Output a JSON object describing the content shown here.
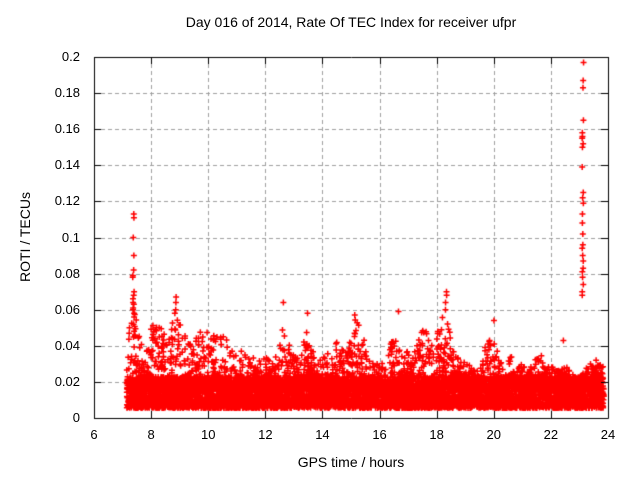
{
  "chart_data": {
    "type": "scatter",
    "title": "Day 016 of 2014, Rate Of TEC Index for receiver ufpr",
    "xlabel": "GPS time / hours",
    "ylabel": "ROTI / TECUs",
    "xlim": [
      6,
      24
    ],
    "ylim": [
      0,
      0.2
    ],
    "xticks": [
      {
        "v": 6,
        "label": "6"
      },
      {
        "v": 8,
        "label": "8"
      },
      {
        "v": 10,
        "label": "10"
      },
      {
        "v": 12,
        "label": "12"
      },
      {
        "v": 14,
        "label": "14"
      },
      {
        "v": 16,
        "label": "16"
      },
      {
        "v": 18,
        "label": "18"
      },
      {
        "v": 20,
        "label": "20"
      },
      {
        "v": 22,
        "label": "22"
      },
      {
        "v": 24,
        "label": "24"
      }
    ],
    "yticks": [
      {
        "v": 0,
        "label": "0"
      },
      {
        "v": 0.02,
        "label": "0.02"
      },
      {
        "v": 0.04,
        "label": "0.04"
      },
      {
        "v": 0.06,
        "label": "0.06"
      },
      {
        "v": 0.08,
        "label": "0.08"
      },
      {
        "v": 0.1,
        "label": "0.1"
      },
      {
        "v": 0.12,
        "label": "0.12"
      },
      {
        "v": 0.14,
        "label": "0.14"
      },
      {
        "v": 0.16,
        "label": "0.16"
      },
      {
        "v": 0.18,
        "label": "0.18"
      },
      {
        "v": 0.2,
        "label": "0.2"
      }
    ],
    "grid": true,
    "legend": false,
    "marker": "plus",
    "marker_color": "#ff0000",
    "grid_color": "#a0a0a0",
    "frame_color": "#000000",
    "time_range": [
      7.15,
      23.85
    ],
    "dense_band": {
      "min": 0.0055,
      "typical_max": 0.023
    },
    "band_envelope": [
      [
        7.15,
        0.03
      ],
      [
        7.3,
        0.055
      ],
      [
        7.45,
        0.058
      ],
      [
        7.6,
        0.045
      ],
      [
        7.8,
        0.035
      ],
      [
        8.0,
        0.05
      ],
      [
        8.2,
        0.055
      ],
      [
        8.4,
        0.05
      ],
      [
        8.6,
        0.042
      ],
      [
        8.85,
        0.062
      ],
      [
        9.1,
        0.05
      ],
      [
        9.3,
        0.045
      ],
      [
        9.5,
        0.052
      ],
      [
        9.7,
        0.048
      ],
      [
        9.9,
        0.05
      ],
      [
        10.1,
        0.048
      ],
      [
        10.3,
        0.045
      ],
      [
        10.5,
        0.048
      ],
      [
        10.7,
        0.042
      ],
      [
        10.9,
        0.038
      ],
      [
        11.1,
        0.04
      ],
      [
        11.3,
        0.035
      ],
      [
        11.5,
        0.032
      ],
      [
        11.7,
        0.036
      ],
      [
        11.9,
        0.032
      ],
      [
        12.1,
        0.035
      ],
      [
        12.3,
        0.03
      ],
      [
        12.6,
        0.05
      ],
      [
        12.8,
        0.042
      ],
      [
        13.0,
        0.036
      ],
      [
        13.2,
        0.032
      ],
      [
        13.45,
        0.052
      ],
      [
        13.7,
        0.035
      ],
      [
        13.9,
        0.032
      ],
      [
        14.1,
        0.04
      ],
      [
        14.3,
        0.035
      ],
      [
        14.5,
        0.042
      ],
      [
        14.7,
        0.038
      ],
      [
        14.9,
        0.04
      ],
      [
        15.15,
        0.055
      ],
      [
        15.4,
        0.048
      ],
      [
        15.6,
        0.035
      ],
      [
        15.8,
        0.03
      ],
      [
        16.0,
        0.032
      ],
      [
        16.2,
        0.028
      ],
      [
        16.5,
        0.048
      ],
      [
        16.7,
        0.042
      ],
      [
        16.9,
        0.035
      ],
      [
        17.1,
        0.042
      ],
      [
        17.3,
        0.048
      ],
      [
        17.55,
        0.05
      ],
      [
        17.8,
        0.045
      ],
      [
        18.0,
        0.048
      ],
      [
        18.3,
        0.06
      ],
      [
        18.5,
        0.05
      ],
      [
        18.7,
        0.035
      ],
      [
        18.9,
        0.032
      ],
      [
        19.1,
        0.03
      ],
      [
        19.3,
        0.028
      ],
      [
        19.5,
        0.032
      ],
      [
        19.7,
        0.04
      ],
      [
        20.0,
        0.046
      ],
      [
        20.2,
        0.032
      ],
      [
        20.4,
        0.028
      ],
      [
        20.6,
        0.035
      ],
      [
        20.8,
        0.028
      ],
      [
        21.0,
        0.03
      ],
      [
        21.2,
        0.028
      ],
      [
        21.4,
        0.032
      ],
      [
        21.7,
        0.038
      ],
      [
        21.9,
        0.03
      ],
      [
        22.1,
        0.028
      ],
      [
        22.3,
        0.026
      ],
      [
        22.5,
        0.03
      ],
      [
        22.7,
        0.025
      ],
      [
        22.9,
        0.022
      ],
      [
        23.1,
        0.024
      ],
      [
        23.3,
        0.03
      ],
      [
        23.5,
        0.035
      ],
      [
        23.7,
        0.03
      ],
      [
        23.85,
        0.028
      ]
    ],
    "outlier_columns": [
      {
        "t": 7.22,
        "values": [
          0.05,
          0.047
        ]
      },
      {
        "t": 7.38,
        "values": [
          0.113,
          0.111,
          0.1,
          0.09,
          0.082,
          0.079,
          0.078,
          0.07,
          0.068,
          0.066,
          0.064,
          0.063,
          0.061,
          0.06,
          0.058,
          0.056,
          0.052,
          0.048
        ]
      },
      {
        "t": 8.88,
        "values": [
          0.067,
          0.064,
          0.06
        ]
      },
      {
        "t": 12.62,
        "values": [
          0.064
        ]
      },
      {
        "t": 13.46,
        "values": [
          0.058
        ]
      },
      {
        "t": 15.15,
        "values": [
          0.057
        ]
      },
      {
        "t": 16.68,
        "values": [
          0.059
        ]
      },
      {
        "t": 18.33,
        "values": [
          0.07,
          0.068,
          0.064,
          0.06
        ]
      },
      {
        "t": 20.0,
        "values": [
          0.054
        ]
      },
      {
        "t": 22.42,
        "values": [
          0.043
        ]
      },
      {
        "t": 23.12,
        "values": [
          0.197,
          0.187,
          0.183,
          0.165,
          0.158,
          0.156,
          0.155,
          0.152,
          0.15,
          0.139,
          0.125,
          0.122,
          0.119,
          0.113,
          0.108,
          0.102,
          0.096,
          0.094,
          0.09,
          0.087,
          0.083,
          0.081,
          0.078,
          0.074,
          0.07,
          0.068
        ]
      }
    ],
    "generation": {
      "seed": 42,
      "step_hours": 0.012,
      "points_per_step": 6,
      "tail_probability": 0.3
    }
  }
}
